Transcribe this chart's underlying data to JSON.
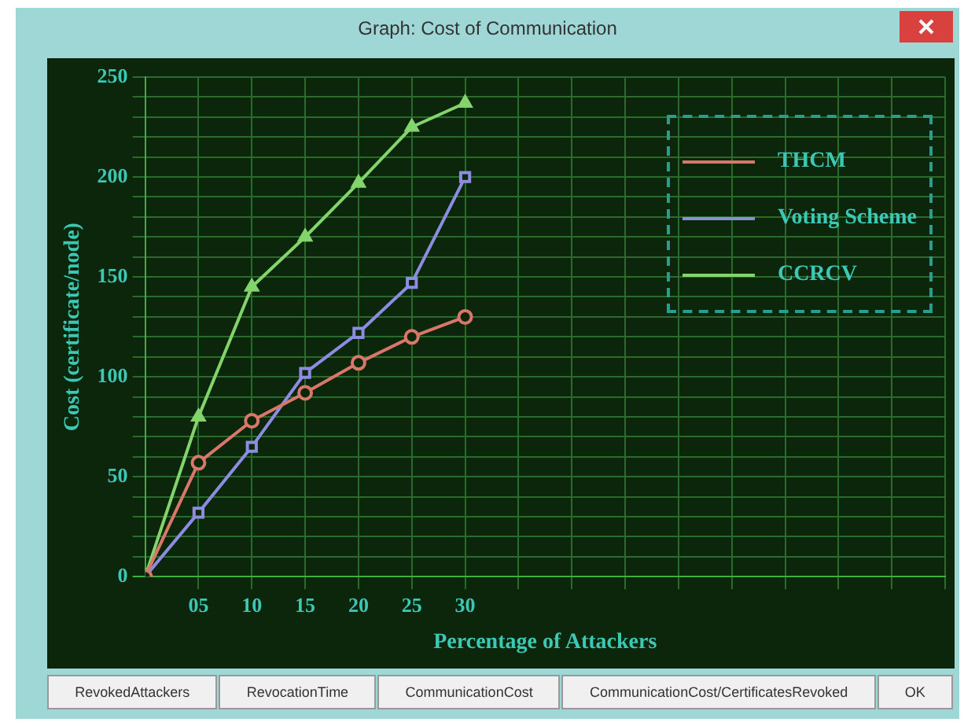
{
  "chart_data": {
    "type": "line",
    "title": "Graph: Cost of Communication",
    "xlabel": "Percentage of Attackers",
    "ylabel": "Cost (certificate/node)",
    "x": [
      0,
      5,
      10,
      15,
      20,
      25,
      30
    ],
    "series": [
      {
        "name": "THCM",
        "color": "#d9776a",
        "marker": "circle",
        "values": [
          0,
          57,
          78,
          92,
          107,
          120,
          130
        ]
      },
      {
        "name": "Voting Scheme",
        "color": "#8c8ce0",
        "marker": "square",
        "values": [
          0,
          32,
          65,
          102,
          122,
          147,
          200
        ]
      },
      {
        "name": "CCRCV",
        "color": "#84d46c",
        "marker": "triangle",
        "values": [
          0,
          80,
          145,
          170,
          197,
          225,
          237
        ]
      }
    ],
    "xlim": [
      0,
      75
    ],
    "xticks": [
      {
        "value": 5,
        "label": "05"
      },
      10,
      15,
      20,
      25,
      30,
      {
        "value": 35,
        "label": null
      },
      {
        "value": 40,
        "label": null
      },
      {
        "value": 45,
        "label": null
      },
      {
        "value": 50,
        "label": null
      },
      {
        "value": 55,
        "label": null
      },
      {
        "value": 60,
        "label": null
      },
      {
        "value": 65,
        "label": null
      },
      {
        "value": 70,
        "label": null
      },
      {
        "value": 75,
        "label": null
      }
    ],
    "ylim": [
      0,
      250
    ],
    "yticks": [
      0,
      {
        "value": 10,
        "label": null
      },
      {
        "value": 20,
        "label": null
      },
      {
        "value": 30,
        "label": null
      },
      {
        "value": 40,
        "label": null
      },
      50,
      {
        "value": 60,
        "label": null
      },
      {
        "value": 70,
        "label": null
      },
      {
        "value": 80,
        "label": null
      },
      {
        "value": 90,
        "label": null
      },
      100,
      {
        "value": 110,
        "label": null
      },
      {
        "value": 120,
        "label": null
      },
      {
        "value": 130,
        "label": null
      },
      {
        "value": 140,
        "label": null
      },
      150,
      {
        "value": 160,
        "label": null
      },
      {
        "value": 170,
        "label": null
      },
      {
        "value": 180,
        "label": null
      },
      {
        "value": 190,
        "label": null
      },
      200,
      {
        "value": 210,
        "label": null
      },
      {
        "value": 220,
        "label": null
      },
      {
        "value": 230,
        "label": null
      },
      {
        "value": 240,
        "label": null
      },
      250
    ],
    "grid": true,
    "legend": "top right",
    "line_style": "solid",
    "annotations": [
      "RevokedAttackers",
      "RevocationTime",
      "CommunicationCost",
      "CommunicationCost/CertificatesRevoked",
      "OK"
    ]
  }
}
